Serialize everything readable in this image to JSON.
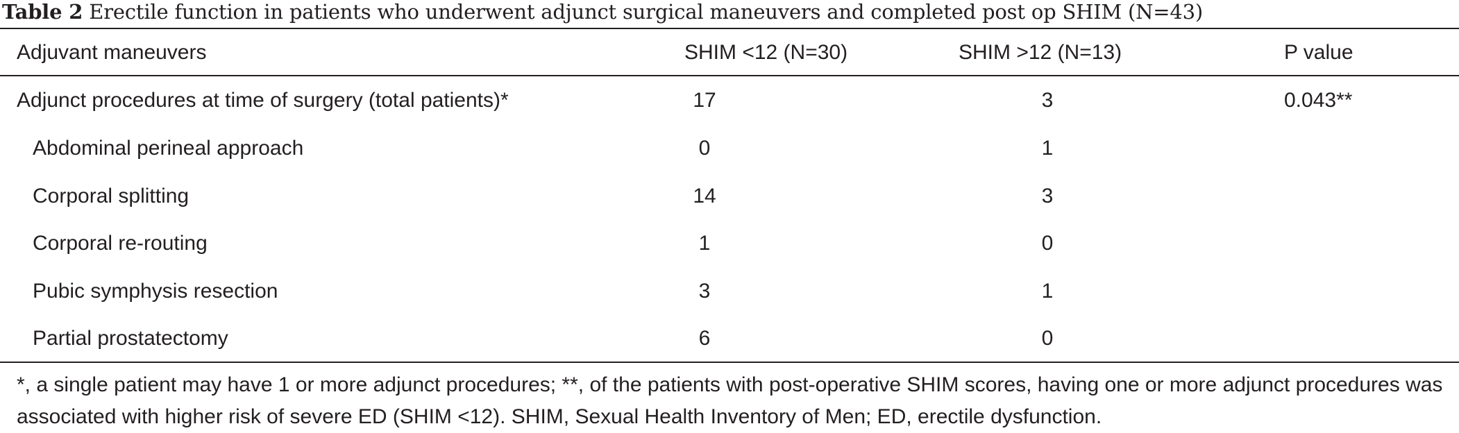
{
  "caption": {
    "label": "Table 2",
    "text": "Erectile function in patients who underwent adjunct surgical maneuvers and completed post op SHIM (N=43)"
  },
  "header": {
    "col0": "Adjuvant maneuvers",
    "col1": "SHIM <12 (N=30)",
    "col2": "SHIM >12 (N=13)",
    "col3": "P value"
  },
  "rows": [
    {
      "label": "Adjunct procedures at time of surgery (total patients)*",
      "shim_lt12": "17",
      "shim_gt12": "3",
      "p_value": "0.043**"
    },
    {
      "label": "Abdominal perineal approach",
      "shim_lt12": "0",
      "shim_gt12": "1",
      "p_value": ""
    },
    {
      "label": "Corporal splitting",
      "shim_lt12": "14",
      "shim_gt12": "3",
      "p_value": ""
    },
    {
      "label": "Corporal re-routing",
      "shim_lt12": "1",
      "shim_gt12": "0",
      "p_value": ""
    },
    {
      "label": "Pubic symphysis resection",
      "shim_lt12": "3",
      "shim_gt12": "1",
      "p_value": ""
    },
    {
      "label": "Partial prostatectomy",
      "shim_lt12": "6",
      "shim_gt12": "0",
      "p_value": ""
    }
  ],
  "footnote": "*, a single patient may have 1 or more adjunct procedures; **, of the patients with post-operative SHIM scores, having one or more adjunct procedures was associated with higher risk of severe ED (SHIM <12). SHIM, Sexual Health Inventory of Men; ED, erectile dysfunction."
}
